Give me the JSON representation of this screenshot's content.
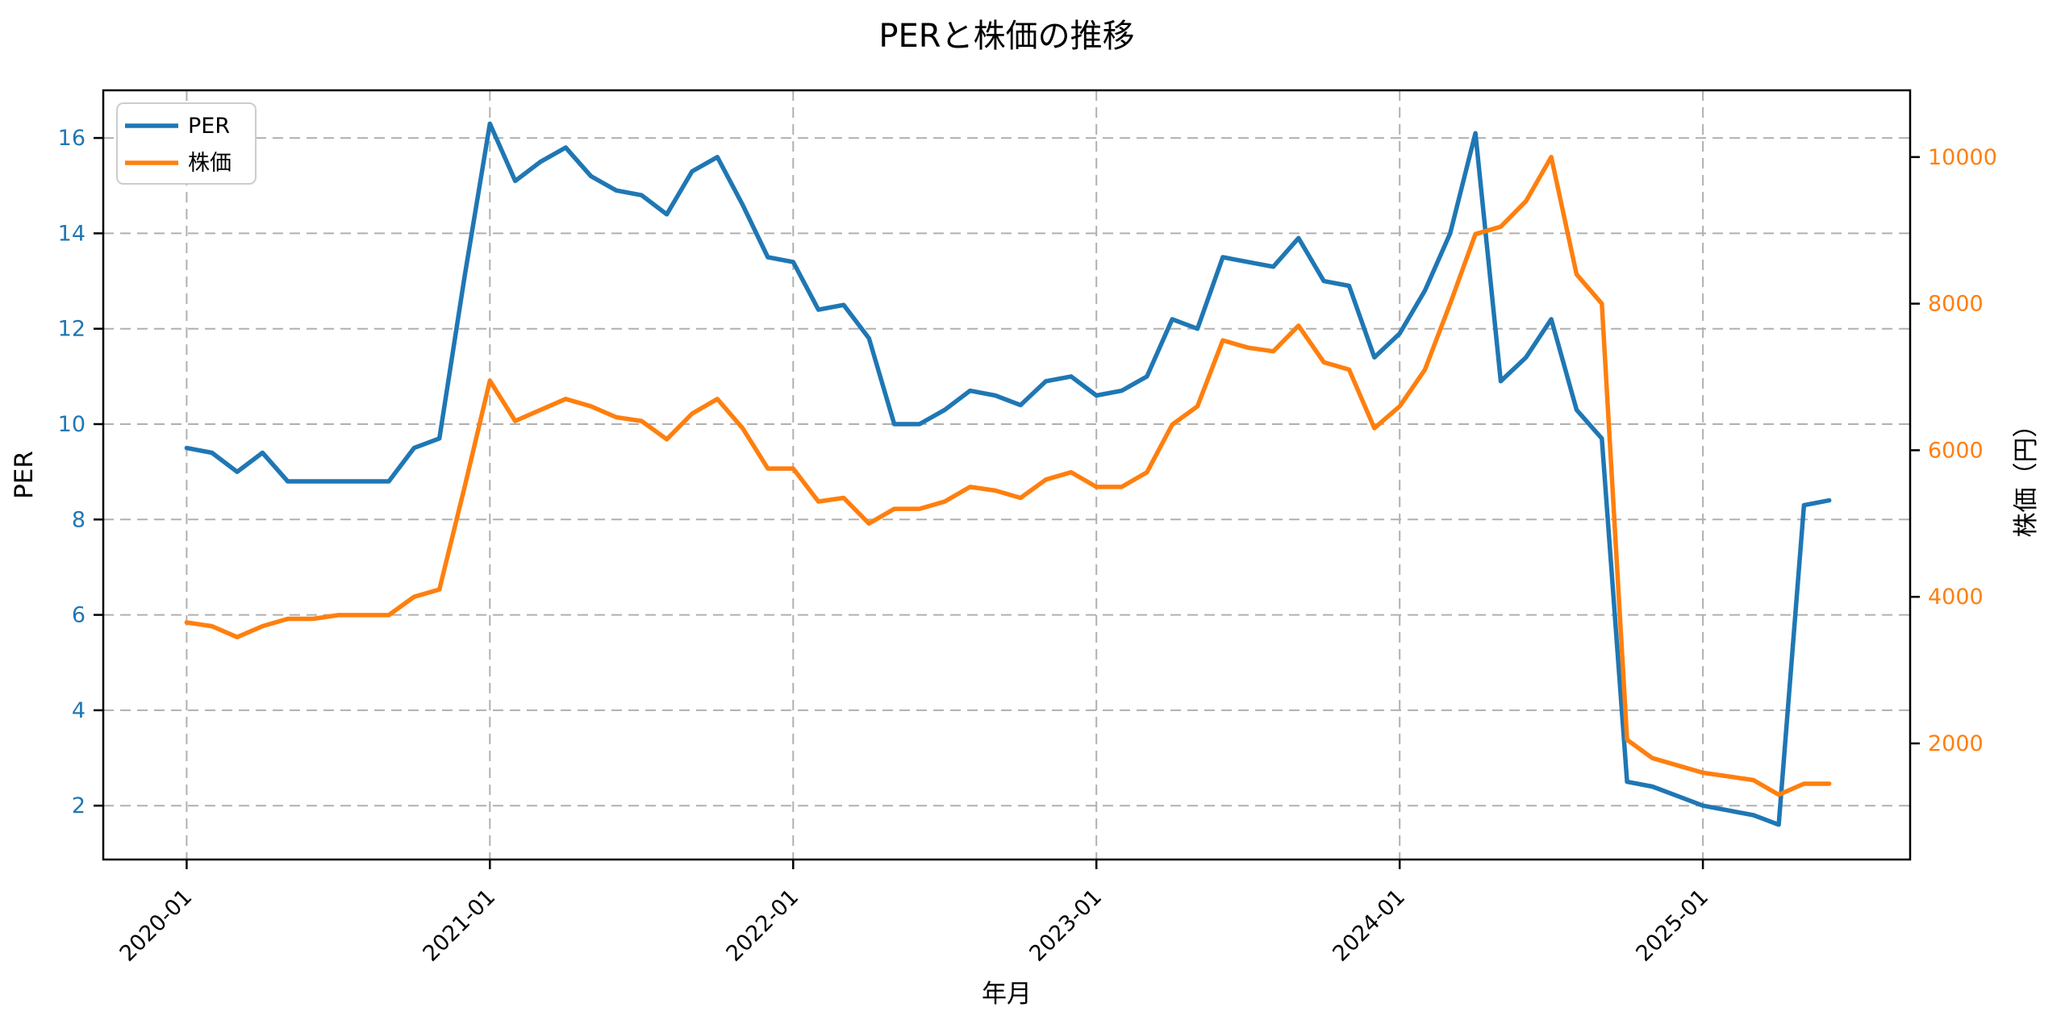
{
  "title": "PERと株価の推移",
  "xlabel": "年月",
  "legend": {
    "per": "PER",
    "price": "株価"
  },
  "colors": {
    "per": "#1f77b4",
    "price": "#ff7f0e",
    "grid": "#b0b0b0",
    "spine": "#000000",
    "background": "#ffffff",
    "legend_border": "#cccccc"
  },
  "chart_data": {
    "type": "line",
    "title": "PERと株価の推移",
    "xlabel": "年月",
    "grid": true,
    "legend_position": "upper left",
    "x": [
      "2020-01",
      "2020-02",
      "2020-03",
      "2020-04",
      "2020-05",
      "2020-06",
      "2020-07",
      "2020-08",
      "2020-09",
      "2020-10",
      "2020-11",
      "2020-12",
      "2021-01",
      "2021-02",
      "2021-03",
      "2021-04",
      "2021-05",
      "2021-06",
      "2021-07",
      "2021-08",
      "2021-09",
      "2021-10",
      "2021-11",
      "2021-12",
      "2022-01",
      "2022-02",
      "2022-03",
      "2022-04",
      "2022-05",
      "2022-06",
      "2022-07",
      "2022-08",
      "2022-09",
      "2022-10",
      "2022-11",
      "2022-12",
      "2023-01",
      "2023-02",
      "2023-03",
      "2023-04",
      "2023-05",
      "2023-06",
      "2023-07",
      "2023-08",
      "2023-09",
      "2023-10",
      "2023-11",
      "2023-12",
      "2024-01",
      "2024-02",
      "2024-03",
      "2024-04",
      "2024-05",
      "2024-06",
      "2024-07",
      "2024-08",
      "2024-09",
      "2024-10",
      "2024-11",
      "2024-12",
      "2025-01",
      "2025-02",
      "2025-03",
      "2025-04",
      "2025-05",
      "2025-06"
    ],
    "series": [
      {
        "name": "PER",
        "axis": "left",
        "color": "#1f77b4",
        "values": [
          9.5,
          9.4,
          9.0,
          9.4,
          8.8,
          8.8,
          8.8,
          8.8,
          8.8,
          9.5,
          9.7,
          13.1,
          16.3,
          15.1,
          15.5,
          15.8,
          15.2,
          14.9,
          14.8,
          14.4,
          15.3,
          15.6,
          14.6,
          13.5,
          13.4,
          12.4,
          12.5,
          11.8,
          10.0,
          10.0,
          10.3,
          10.7,
          10.6,
          10.4,
          10.9,
          11.0,
          10.6,
          10.7,
          11.0,
          12.2,
          12.0,
          13.5,
          13.4,
          13.3,
          13.9,
          13.0,
          12.9,
          11.4,
          11.9,
          12.8,
          14.0,
          16.1,
          10.9,
          11.4,
          12.2,
          10.3,
          9.7,
          2.5,
          2.4,
          2.2,
          2.0,
          1.9,
          1.8,
          1.6,
          8.3,
          8.4
        ]
      },
      {
        "name": "株価",
        "axis": "right",
        "color": "#ff7f0e",
        "values": [
          3650,
          3600,
          3450,
          3600,
          3700,
          3700,
          3750,
          3750,
          3750,
          4000,
          4100,
          5500,
          6950,
          6400,
          6550,
          6700,
          6600,
          6450,
          6400,
          6150,
          6500,
          6700,
          6300,
          5750,
          5750,
          5300,
          5350,
          5000,
          5200,
          5200,
          5300,
          5500,
          5450,
          5350,
          5600,
          5700,
          5500,
          5500,
          5700,
          6350,
          6600,
          7500,
          7400,
          7350,
          7700,
          7200,
          7100,
          6300,
          6600,
          7100,
          8000,
          8950,
          9050,
          9400,
          10000,
          8400,
          8000,
          2050,
          1800,
          1700,
          1600,
          1550,
          1500,
          1300,
          1450,
          1450
        ]
      }
    ],
    "x_ticks": [
      {
        "index": 0,
        "label": "2020-01"
      },
      {
        "index": 12,
        "label": "2021-01"
      },
      {
        "index": 24,
        "label": "2022-01"
      },
      {
        "index": 36,
        "label": "2023-01"
      },
      {
        "index": 48,
        "label": "2024-01"
      },
      {
        "index": 60,
        "label": "2025-01"
      }
    ],
    "x_range_months": [
      -3.3,
      68.2
    ],
    "y_left": {
      "label": "PER",
      "ticks": [
        2,
        4,
        6,
        8,
        10,
        12,
        14,
        16
      ],
      "range": [
        0.87,
        17.0
      ],
      "color": "#1f77b4"
    },
    "y_right": {
      "label": "株価（円）",
      "ticks": [
        2000,
        4000,
        6000,
        8000,
        10000
      ],
      "range": [
        416,
        10911
      ],
      "color": "#ff7f0e"
    }
  }
}
